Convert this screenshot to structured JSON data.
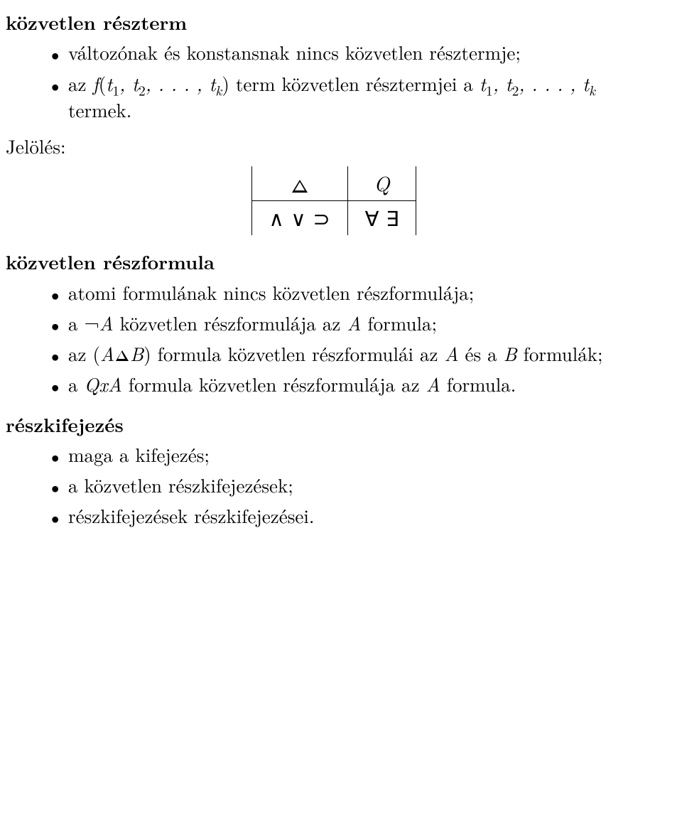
{
  "headings": {
    "h1": "közvetlen részterm",
    "h2": "közvetlen részformula",
    "h3": "részkifejezés"
  },
  "labels": {
    "jeloles": "Jelölés:"
  },
  "section1": {
    "li1_pre": "változónak és konstansnak nincs közvetlen résztermje;",
    "li2_a": "az ",
    "li2_f": "f",
    "li2_lp": "(",
    "li2_t1": "t",
    "li2_s1": "1",
    "li2_c1": ", ",
    "li2_t2": "t",
    "li2_s2": "2",
    "li2_c2": ", . . . , ",
    "li2_tk": "t",
    "li2_sk": "k",
    "li2_rp": ")",
    "li2_mid": " term közvetlen résztermjei a ",
    "li2_t1b": "t",
    "li2_s1b": "1",
    "li2_c1b": ", ",
    "li2_t2b": "t",
    "li2_s2b": "2",
    "li2_c2b": ", . . . , ",
    "li2_tkb": "t",
    "li2_skb": "k",
    "li2_end": " termek."
  },
  "table": {
    "r1c1": "△",
    "r1c2": "Q",
    "r2c1": "∧  ∨  ⊃",
    "r2c2": "∀  ∃"
  },
  "section2": {
    "li1": "atomi formulának nincs közvetlen részformulája;",
    "li2_a": "a ",
    "li2_neg": "¬",
    "li2_A": "A",
    "li2_mid": " közvetlen részformulája az ",
    "li2_A2": "A",
    "li2_end": " formula;",
    "li3_a": "az ",
    "li3_lp": "(",
    "li3_A": "A",
    "li3_B": "B",
    "li3_rp": ")",
    "li3_mid": " formula közvetlen részformulái az ",
    "li3_A2": "A",
    "li3_mid2": " és a ",
    "li3_B2": "B",
    "li3_end": " formulák;",
    "li4_a": "a ",
    "li4_Q": "Q",
    "li4_x": "x",
    "li4_A": "A",
    "li4_mid": " formula közvetlen részformulája az ",
    "li4_A2": "A",
    "li4_end": " formula."
  },
  "section3": {
    "li1": "maga a kifejezés;",
    "li2": "a közvetlen részkifejezések;",
    "li3": "részkifejezések részkifejezései."
  },
  "colors": {
    "text": "#000000",
    "background": "#ffffff"
  }
}
